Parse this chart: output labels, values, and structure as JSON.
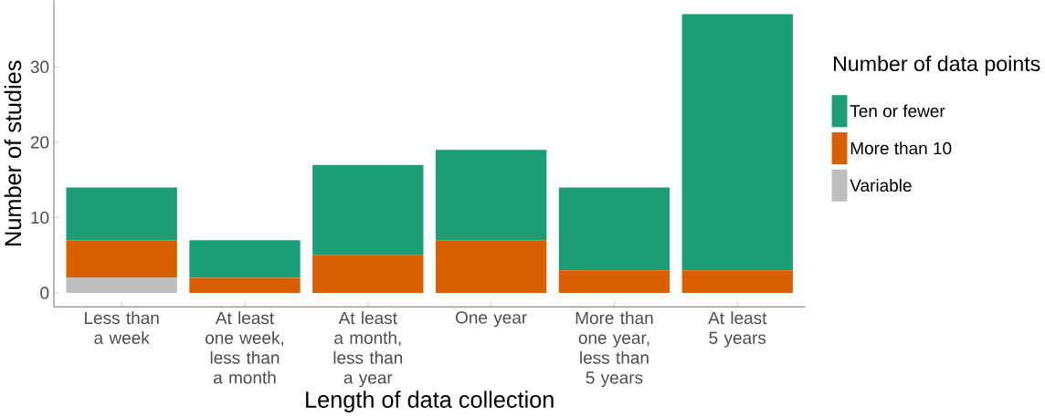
{
  "chart_data": {
    "type": "bar",
    "stacked": true,
    "xlabel": "Length of data collection",
    "ylabel": "Number of studies",
    "legend_title": "Number of data points",
    "categories": [
      "Less than a week",
      "At least one week, less than a month",
      "At least a month, less than a year",
      "One year",
      "More than one year, less than 5 years",
      "At least 5 years"
    ],
    "series": [
      {
        "name": "Variable",
        "color": "#bebebe",
        "values": [
          2,
          0,
          0,
          0,
          0,
          0
        ]
      },
      {
        "name": "More than 10",
        "color": "#d95f02",
        "values": [
          5,
          2,
          5,
          7,
          3,
          3
        ]
      },
      {
        "name": "Ten or fewer",
        "color": "#1b9e77",
        "values": [
          7,
          5,
          12,
          12,
          11,
          34
        ]
      }
    ],
    "ylim": [
      -1.85,
      38.85
    ],
    "yticks": [
      0,
      10,
      20,
      30
    ],
    "grid": false,
    "legend": "right"
  }
}
